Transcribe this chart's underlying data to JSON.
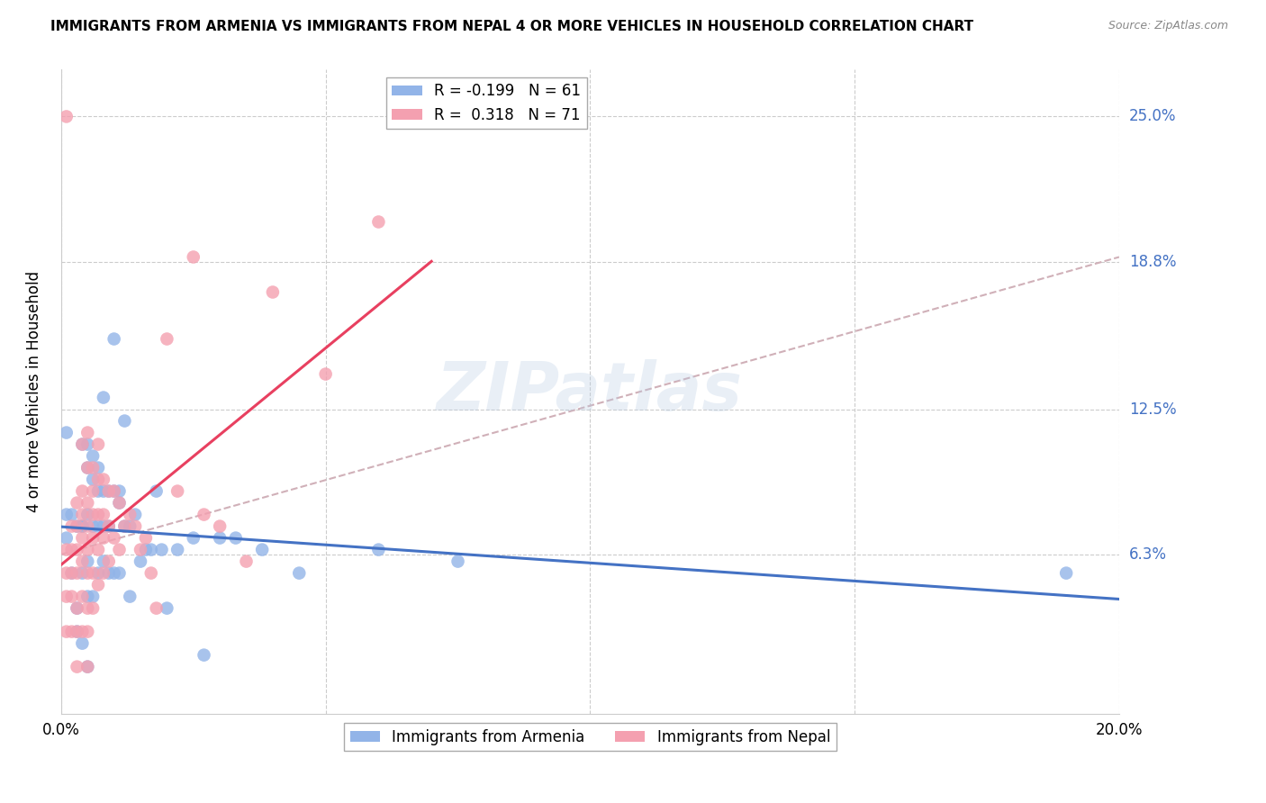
{
  "title": "IMMIGRANTS FROM ARMENIA VS IMMIGRANTS FROM NEPAL 4 OR MORE VEHICLES IN HOUSEHOLD CORRELATION CHART",
  "source": "Source: ZipAtlas.com",
  "ylabel": "4 or more Vehicles in Household",
  "x_label_armenia": "Immigrants from Armenia",
  "x_label_nepal": "Immigrants from Nepal",
  "xlim": [
    0.0,
    0.2
  ],
  "ylim": [
    -0.005,
    0.27
  ],
  "yticks": [
    0.063,
    0.125,
    0.188,
    0.25
  ],
  "ytick_labels": [
    "6.3%",
    "12.5%",
    "18.8%",
    "25.0%"
  ],
  "xtick_positions": [
    0.0,
    0.05,
    0.1,
    0.15,
    0.2
  ],
  "xtick_labels": [
    "0.0%",
    "",
    "",
    "",
    "20.0%"
  ],
  "legend_r_armenia": "-0.199",
  "legend_n_armenia": "61",
  "legend_r_nepal": "0.318",
  "legend_n_nepal": "71",
  "color_armenia": "#92b4e8",
  "color_nepal": "#f4a0b0",
  "color_regression_armenia": "#4472c4",
  "color_regression_nepal": "#e84060",
  "color_diagonal": "#d0b0b8",
  "watermark_color": "#b8cce4",
  "armenia_x": [
    0.001,
    0.001,
    0.002,
    0.002,
    0.003,
    0.003,
    0.003,
    0.004,
    0.004,
    0.004,
    0.004,
    0.004,
    0.005,
    0.005,
    0.005,
    0.005,
    0.005,
    0.005,
    0.006,
    0.006,
    0.006,
    0.006,
    0.007,
    0.007,
    0.007,
    0.007,
    0.008,
    0.008,
    0.008,
    0.008,
    0.009,
    0.009,
    0.009,
    0.01,
    0.01,
    0.01,
    0.011,
    0.011,
    0.011,
    0.012,
    0.012,
    0.013,
    0.013,
    0.014,
    0.015,
    0.016,
    0.017,
    0.018,
    0.019,
    0.02,
    0.022,
    0.025,
    0.027,
    0.03,
    0.033,
    0.038,
    0.045,
    0.06,
    0.075,
    0.19,
    0.001
  ],
  "armenia_y": [
    0.115,
    0.07,
    0.08,
    0.055,
    0.075,
    0.04,
    0.03,
    0.075,
    0.11,
    0.075,
    0.055,
    0.025,
    0.11,
    0.1,
    0.08,
    0.06,
    0.045,
    0.015,
    0.105,
    0.095,
    0.075,
    0.045,
    0.1,
    0.09,
    0.075,
    0.055,
    0.13,
    0.09,
    0.075,
    0.06,
    0.09,
    0.075,
    0.055,
    0.155,
    0.09,
    0.055,
    0.09,
    0.085,
    0.055,
    0.12,
    0.075,
    0.075,
    0.045,
    0.08,
    0.06,
    0.065,
    0.065,
    0.09,
    0.065,
    0.04,
    0.065,
    0.07,
    0.02,
    0.07,
    0.07,
    0.065,
    0.055,
    0.065,
    0.06,
    0.055,
    0.08
  ],
  "nepal_x": [
    0.001,
    0.001,
    0.001,
    0.001,
    0.002,
    0.002,
    0.002,
    0.002,
    0.002,
    0.003,
    0.003,
    0.003,
    0.003,
    0.003,
    0.003,
    0.003,
    0.004,
    0.004,
    0.004,
    0.004,
    0.004,
    0.004,
    0.004,
    0.005,
    0.005,
    0.005,
    0.005,
    0.005,
    0.005,
    0.005,
    0.005,
    0.005,
    0.006,
    0.006,
    0.006,
    0.006,
    0.006,
    0.006,
    0.007,
    0.007,
    0.007,
    0.007,
    0.007,
    0.008,
    0.008,
    0.008,
    0.008,
    0.009,
    0.009,
    0.009,
    0.01,
    0.01,
    0.011,
    0.011,
    0.012,
    0.013,
    0.014,
    0.015,
    0.016,
    0.017,
    0.018,
    0.02,
    0.022,
    0.025,
    0.027,
    0.03,
    0.035,
    0.04,
    0.05,
    0.06,
    0.001
  ],
  "nepal_y": [
    0.065,
    0.055,
    0.045,
    0.03,
    0.075,
    0.065,
    0.055,
    0.045,
    0.03,
    0.085,
    0.075,
    0.065,
    0.055,
    0.04,
    0.03,
    0.015,
    0.11,
    0.09,
    0.08,
    0.07,
    0.06,
    0.045,
    0.03,
    0.115,
    0.1,
    0.085,
    0.075,
    0.065,
    0.055,
    0.04,
    0.03,
    0.015,
    0.1,
    0.09,
    0.08,
    0.07,
    0.055,
    0.04,
    0.11,
    0.095,
    0.08,
    0.065,
    0.05,
    0.095,
    0.08,
    0.07,
    0.055,
    0.09,
    0.075,
    0.06,
    0.09,
    0.07,
    0.085,
    0.065,
    0.075,
    0.08,
    0.075,
    0.065,
    0.07,
    0.055,
    0.04,
    0.155,
    0.09,
    0.19,
    0.08,
    0.075,
    0.06,
    0.175,
    0.14,
    0.205,
    0.25
  ]
}
